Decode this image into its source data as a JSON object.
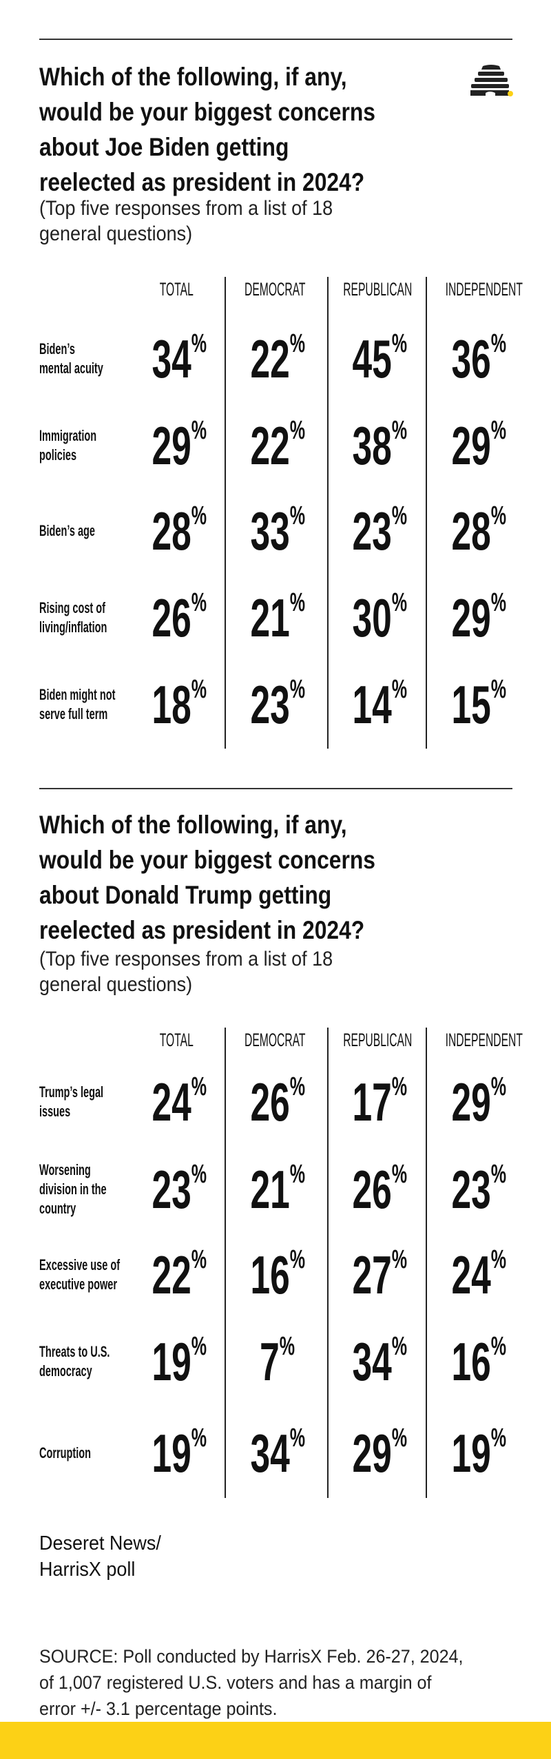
{
  "colors": {
    "accent_yellow": "#fcd116",
    "text": "#111111"
  },
  "logo": {
    "icon": "beehive-icon"
  },
  "chart_data": [
    {
      "type": "table",
      "title_lines": [
        "Which of the following, if any,",
        "would be your biggest concerns",
        "about Joe Biden getting",
        "reelected as president in 2024?"
      ],
      "subtitle_lines": [
        "(Top five responses from a list of 18",
        "general questions)"
      ],
      "columns": [
        "TOTAL",
        "DEMOCRAT",
        "REPUBLICAN",
        "INDEPENDENT"
      ],
      "rows": [
        {
          "label_lines": [
            "Biden’s",
            "mental acuity"
          ],
          "values": [
            34,
            22,
            45,
            36
          ]
        },
        {
          "label_lines": [
            "Immigration",
            "policies"
          ],
          "values": [
            29,
            22,
            38,
            29
          ]
        },
        {
          "label_lines": [
            "Biden’s age"
          ],
          "values": [
            28,
            33,
            23,
            28
          ]
        },
        {
          "label_lines": [
            "Rising cost of",
            "living/inflation"
          ],
          "values": [
            26,
            21,
            30,
            29
          ]
        },
        {
          "label_lines": [
            "Biden might not",
            "serve full term"
          ],
          "values": [
            18,
            23,
            14,
            15
          ]
        }
      ],
      "unit": "%"
    },
    {
      "type": "table",
      "title_lines": [
        "Which of the following, if any,",
        "would be your biggest concerns",
        "about Donald Trump getting",
        "reelected as president in 2024?"
      ],
      "subtitle_lines": [
        "(Top five responses from a list of 18",
        "general questions)"
      ],
      "columns": [
        "TOTAL",
        "DEMOCRAT",
        "REPUBLICAN",
        "INDEPENDENT"
      ],
      "rows": [
        {
          "label_lines": [
            "Trump’s legal",
            "issues"
          ],
          "values": [
            24,
            26,
            17,
            29
          ]
        },
        {
          "label_lines": [
            "Worsening",
            "division in the",
            "country"
          ],
          "values": [
            23,
            21,
            26,
            23
          ]
        },
        {
          "label_lines": [
            "Excessive use of",
            "executive power"
          ],
          "values": [
            22,
            16,
            27,
            24
          ]
        },
        {
          "label_lines": [
            "Threats to U.S.",
            "democracy"
          ],
          "values": [
            19,
            7,
            34,
            16
          ]
        },
        {
          "label_lines": [
            "Corruption"
          ],
          "values": [
            19,
            34,
            29,
            19
          ]
        }
      ],
      "unit": "%"
    }
  ],
  "credit_lines": [
    "Deseret News/",
    "HarrisX poll"
  ],
  "source_lines": [
    "SOURCE: Poll conducted by HarrisX Feb. 26-27, 2024,",
    "of 1,007 registered U.S. voters and has a margin of",
    "error +/- 3.1 percentage points."
  ]
}
